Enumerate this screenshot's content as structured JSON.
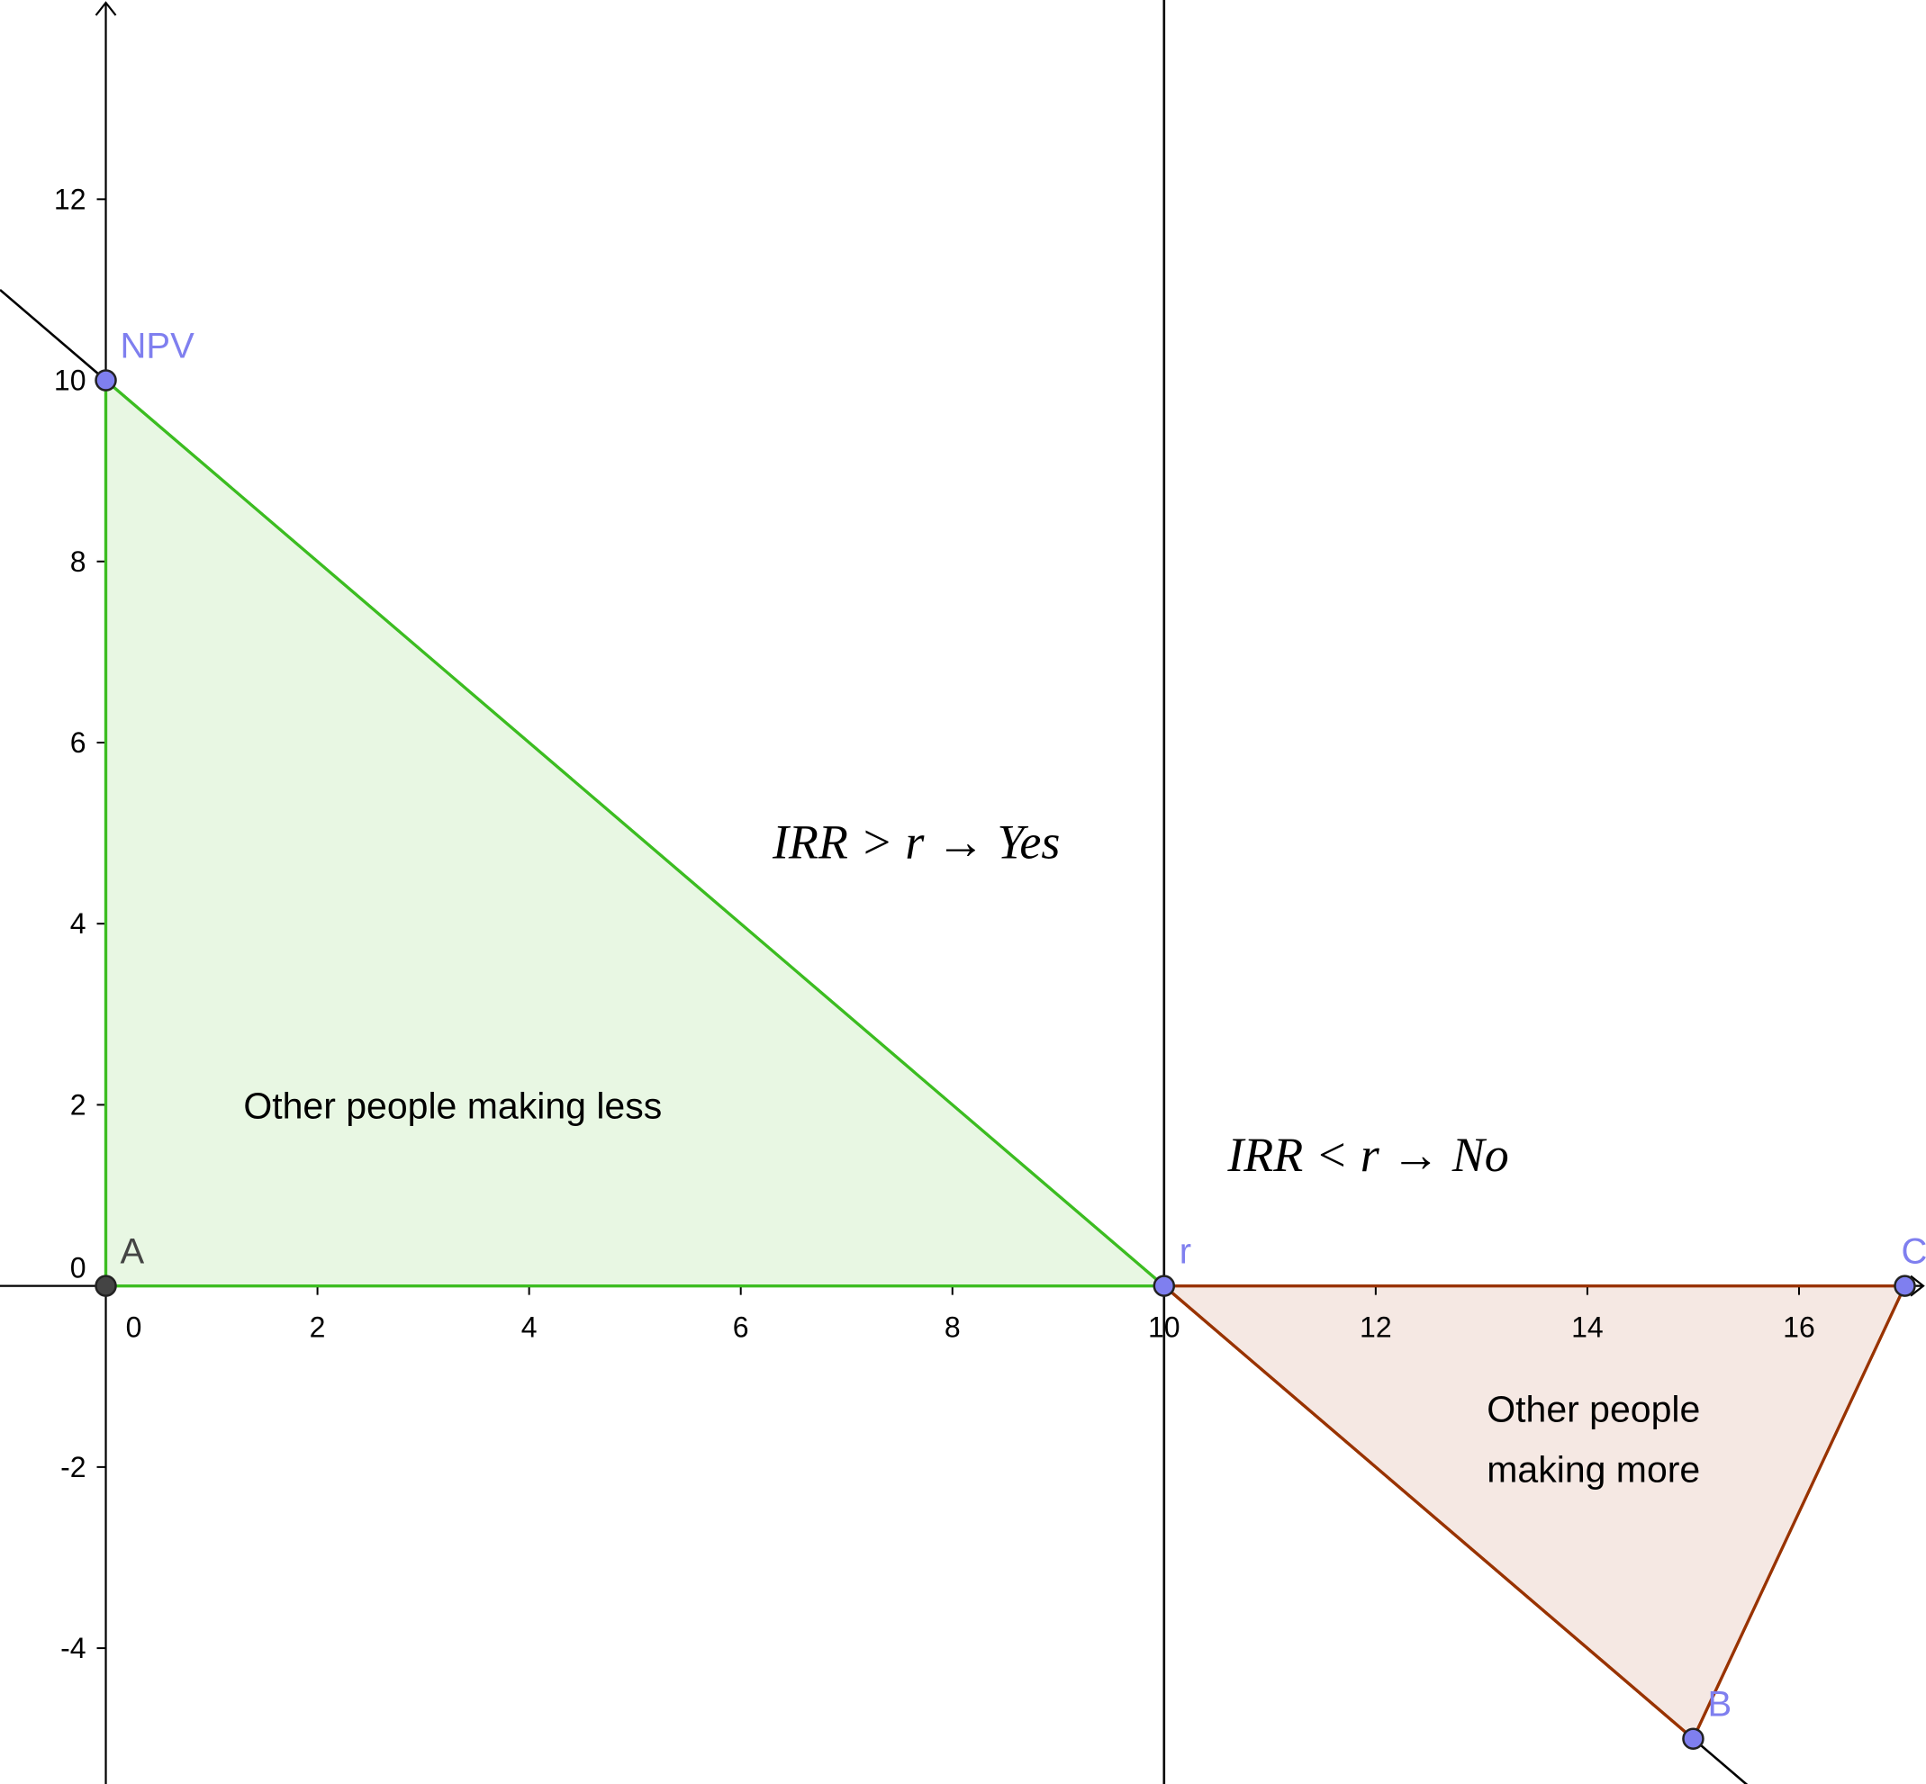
{
  "chart_data": {
    "type": "scatter",
    "xlim": [
      -1,
      17.2
    ],
    "ylim": [
      -5.5,
      14.2
    ],
    "grid": false,
    "x_ticks": [
      0,
      2,
      4,
      6,
      8,
      10,
      12,
      14,
      16
    ],
    "y_ticks": [
      -4,
      -2,
      0,
      2,
      4,
      6,
      8,
      10,
      12
    ],
    "tick_labels_x": [
      "0",
      "2",
      "4",
      "6",
      "8",
      "10",
      "12",
      "14",
      "16"
    ],
    "tick_labels_y": [
      "-4",
      "-2",
      "0",
      "2",
      "4",
      "6",
      "8",
      "10",
      "12"
    ],
    "vertical_line_x": 10,
    "npv_line": {
      "through": [
        [
          0,
          10
        ],
        [
          15,
          -5
        ]
      ],
      "slope": -1,
      "intercept": 10
    },
    "points": [
      {
        "label": "A",
        "x": 0,
        "y": 0,
        "color": "#444444"
      },
      {
        "label": "NPV",
        "x": 0,
        "y": 10,
        "color": "#7f7fef"
      },
      {
        "label": "r",
        "x": 10,
        "y": 0,
        "color": "#7f7fef"
      },
      {
        "label": "B",
        "x": 15,
        "y": -5,
        "color": "#7f7fef"
      },
      {
        "label": "C",
        "x": 17,
        "y": 0,
        "color": "#7f7fef"
      }
    ],
    "regions": [
      {
        "vertices": [
          [
            0,
            0
          ],
          [
            0,
            10
          ],
          [
            10,
            0
          ]
        ],
        "fill": "#e8f7e3",
        "stroke": "#3cbd21",
        "label_lines": [
          "Other people making less"
        ],
        "label_at": [
          1.3,
          2
        ]
      },
      {
        "vertices": [
          [
            10,
            0
          ],
          [
            15,
            -5
          ],
          [
            17,
            0
          ]
        ],
        "fill": "#f5e8e3",
        "stroke": "#993300",
        "label_lines": [
          "Other people",
          "making more"
        ],
        "label_at": [
          13.05,
          -1.35
        ]
      }
    ],
    "annotations": [
      {
        "text": "IRR > r → Yes",
        "at": [
          6.3,
          4.9
        ]
      },
      {
        "text": "IRR < r → No",
        "at": [
          10.6,
          1.45
        ]
      }
    ]
  }
}
